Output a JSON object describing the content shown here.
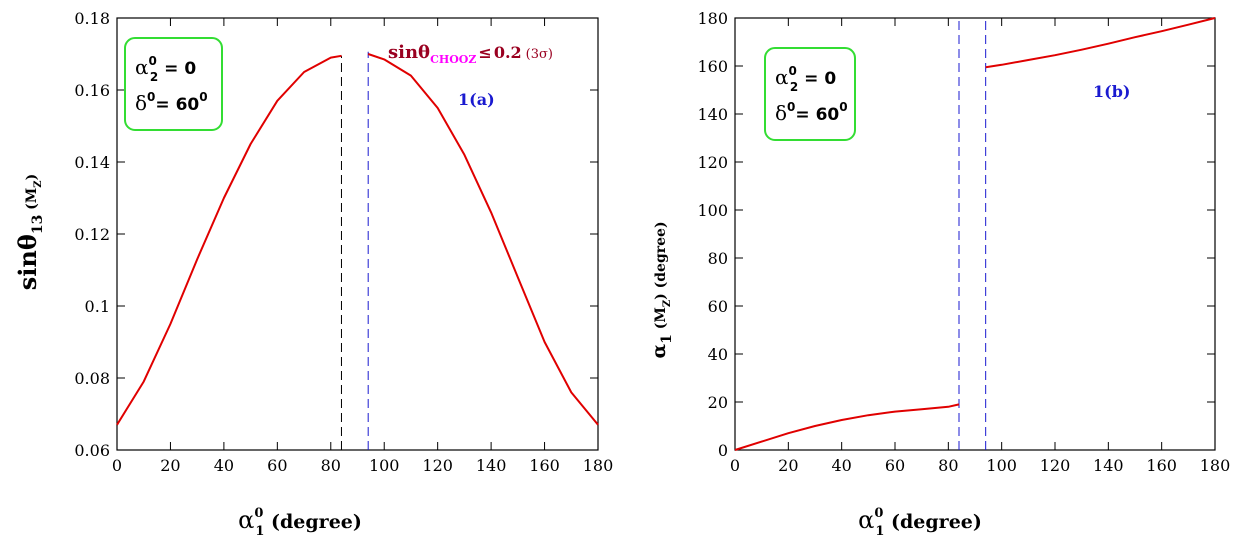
{
  "colors": {
    "curve": "#e00000",
    "left_vline": "#000000",
    "right_vline": "#1a1ad0",
    "box_border": "#33dd33",
    "panel_label": "#1a1ad0",
    "chooz_sin": "#9a0020",
    "chooz_sub": "#ff00ff"
  },
  "chart_data": [
    {
      "type": "line",
      "panel_label": "1(a)",
      "xlabel": {
        "symbol": "α",
        "sup": "0",
        "sub": "1",
        "unit": "(degree)"
      },
      "ylabel": {
        "main": "sinθ",
        "sub": "13",
        "arg": "(M",
        "arg_sub": "Z",
        "arg_close": ")"
      },
      "xlim": [
        0,
        180
      ],
      "ylim": [
        0.06,
        0.18
      ],
      "xticks": [
        "0",
        "20",
        "40",
        "60",
        "80",
        "100",
        "120",
        "140",
        "160",
        "180"
      ],
      "yticks": [
        "0.06",
        "0.08",
        "0.1",
        "0.12",
        "0.14",
        "0.16",
        "0.18"
      ],
      "vlines": [
        84,
        94
      ],
      "annotation": {
        "sin": "sinθ",
        "sub": "CHOOZ",
        "rel": "≤",
        "val": "0.2",
        "sig": "(3σ)"
      },
      "box": {
        "line1": {
          "symbol": "α",
          "sup": "0",
          "sub": "2",
          "rest": " = 0"
        },
        "line2": {
          "symbol": "δ",
          "sup": "0",
          "rest": "= 60",
          "rest_sup": "0"
        }
      },
      "series": [
        {
          "x": [
            0,
            10,
            20,
            30,
            40,
            50,
            60,
            70,
            80,
            84
          ],
          "y": [
            0.067,
            0.079,
            0.095,
            0.113,
            0.13,
            0.145,
            0.157,
            0.165,
            0.169,
            0.1695
          ]
        },
        {
          "x": [
            94,
            100,
            110,
            120,
            130,
            140,
            150,
            160,
            170,
            180
          ],
          "y": [
            0.17,
            0.1685,
            0.164,
            0.155,
            0.142,
            0.126,
            0.108,
            0.09,
            0.076,
            0.067
          ]
        }
      ]
    },
    {
      "type": "line",
      "panel_label": "1(b)",
      "xlabel": {
        "symbol": "α",
        "sup": "0",
        "sub": "1",
        "unit": "(degree)"
      },
      "ylabel": {
        "main": "α",
        "sub": "1",
        "arg": "(M",
        "arg_sub": "Z",
        "arg_close": ") (degree)"
      },
      "xlim": [
        0,
        180
      ],
      "ylim": [
        0,
        180
      ],
      "xticks": [
        "0",
        "20",
        "40",
        "60",
        "80",
        "100",
        "120",
        "140",
        "160",
        "180"
      ],
      "yticks": [
        "0",
        "20",
        "40",
        "60",
        "80",
        "100",
        "120",
        "140",
        "160",
        "180"
      ],
      "vlines": [
        84,
        94
      ],
      "box": {
        "line1": {
          "symbol": "α",
          "sup": "0",
          "sub": "2",
          "rest": " = 0"
        },
        "line2": {
          "symbol": "δ",
          "sup": "0",
          "rest": "= 60",
          "rest_sup": "0"
        }
      },
      "series": [
        {
          "x": [
            0,
            10,
            20,
            30,
            40,
            50,
            60,
            70,
            80,
            84
          ],
          "y": [
            0,
            3.5,
            7,
            10,
            12.5,
            14.5,
            16,
            17,
            18,
            19
          ]
        },
        {
          "x": [
            94,
            100,
            110,
            120,
            130,
            140,
            150,
            160,
            170,
            180
          ],
          "y": [
            159.5,
            160.5,
            162.5,
            164.5,
            166.8,
            169.3,
            172,
            174.5,
            177.2,
            180
          ]
        }
      ]
    }
  ]
}
